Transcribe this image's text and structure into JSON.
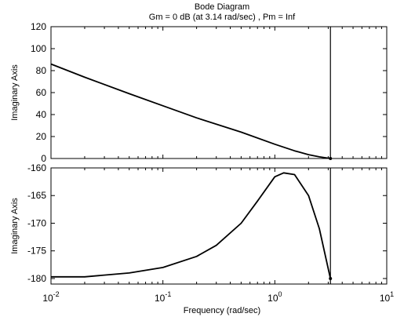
{
  "chart_data": {
    "type": "line",
    "title": "Bode Diagram",
    "subtitle": "Gm = 0 dB (at 3.14 rad/sec) ,  Pm = Inf",
    "xlabel": "Frequency  (rad/sec)",
    "xscale": "log",
    "xlim": [
      0.01,
      10
    ],
    "x_tick_labels": [
      {
        "base": "10",
        "exp": "-2",
        "value": 0.01
      },
      {
        "base": "10",
        "exp": "-1",
        "value": 0.1
      },
      {
        "base": "10",
        "exp": "0",
        "value": 1
      },
      {
        "base": "10",
        "exp": "1",
        "value": 10
      }
    ],
    "grid": false,
    "crossover_frequency": 3.14,
    "panels": [
      {
        "ylabel": "Imaginary Axis",
        "ylim": [
          0,
          120
        ],
        "yticks": [
          0,
          20,
          40,
          60,
          80,
          100,
          120
        ],
        "series": [
          {
            "x": [
              0.01,
              0.02,
              0.05,
              0.1,
              0.2,
              0.5,
              1,
              1.5,
              2,
              2.5,
              3.14
            ],
            "y": [
              86,
              74,
              59,
              48,
              37,
              24,
              13,
              7,
              3.5,
              1.5,
              0
            ]
          }
        ]
      },
      {
        "ylabel": "Imaginary Axis",
        "ylim": [
          -181,
          -160
        ],
        "yticks": [
          -180,
          -175,
          -170,
          -165,
          -160
        ],
        "series": [
          {
            "x": [
              0.01,
              0.02,
              0.05,
              0.1,
              0.2,
              0.3,
              0.5,
              0.7,
              1,
              1.2,
              1.5,
              2,
              2.5,
              3.14
            ],
            "y": [
              -179.7,
              -179.7,
              -179,
              -178,
              -176,
              -174,
              -170,
              -166,
              -161.6,
              -160.9,
              -161.2,
              -165,
              -171,
              -180
            ]
          }
        ]
      }
    ]
  }
}
